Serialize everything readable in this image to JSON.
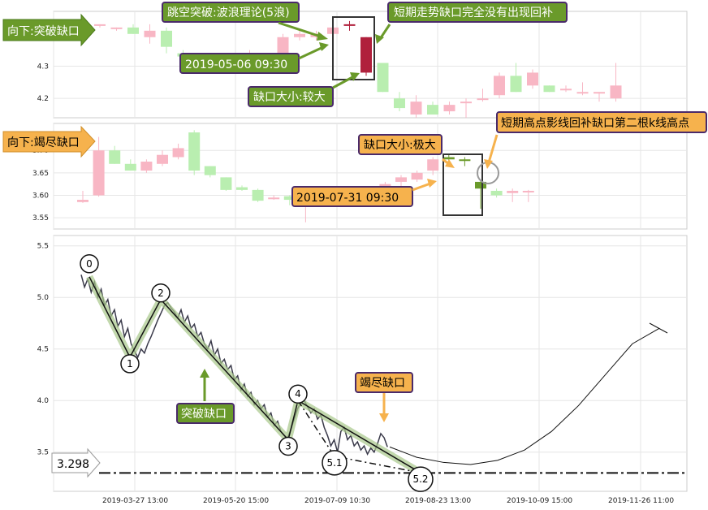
{
  "chart_data": [
    {
      "type": "candlestick",
      "panel": "upper",
      "tag": "向下:突破缺口",
      "ylim": [
        4.14,
        4.47
      ],
      "yticks": [
        "4.3",
        "4.2"
      ],
      "annotations": {
        "wave_breakout": "跳空突破:波浪理论(5浪)",
        "gap_unfilled": "短期走势缺口完全没有出现回补",
        "gap_time": "2019-05-06 09:30",
        "gap_size": "缺口大小:较大"
      },
      "candles": [
        {
          "o": 4.43,
          "h": 4.43,
          "l": 4.42,
          "c": 4.43
        },
        {
          "o": 4.42,
          "h": 4.42,
          "l": 4.41,
          "c": 4.42
        },
        {
          "o": 4.42,
          "h": 4.43,
          "l": 4.4,
          "c": 4.4
        },
        {
          "o": 4.39,
          "h": 4.43,
          "l": 4.37,
          "c": 4.41
        },
        {
          "o": 4.41,
          "h": 4.42,
          "l": 4.34,
          "c": 4.36
        },
        {
          "o": 4.34,
          "h": 4.35,
          "l": 4.32,
          "c": 4.33
        },
        {
          "o": 4.3,
          "h": 4.31,
          "l": 4.29,
          "c": 4.3
        },
        {
          "o": 4.3,
          "h": 4.31,
          "l": 4.29,
          "c": 4.3
        },
        {
          "o": 4.32,
          "h": 4.33,
          "l": 4.31,
          "c": 4.32
        },
        {
          "o": 4.33,
          "h": 4.35,
          "l": 4.32,
          "c": 4.33
        },
        {
          "o": 4.33,
          "h": 4.34,
          "l": 4.32,
          "c": 4.34
        },
        {
          "o": 4.33,
          "h": 4.4,
          "l": 4.32,
          "c": 4.39
        },
        {
          "o": 4.39,
          "h": 4.41,
          "l": 4.38,
          "c": 4.4
        },
        {
          "o": 4.39,
          "h": 4.41,
          "l": 4.38,
          "c": 4.4
        },
        {
          "o": 4.4,
          "h": 4.43,
          "l": 4.39,
          "c": 4.42
        },
        {
          "o": 4.43,
          "h": 4.44,
          "l": 4.41,
          "c": 4.43
        },
        {
          "o": 4.39,
          "h": 4.39,
          "l": 4.27,
          "c": 4.28
        },
        {
          "o": 4.31,
          "h": 4.31,
          "l": 4.22,
          "c": 4.22
        },
        {
          "o": 4.2,
          "h": 4.22,
          "l": 4.16,
          "c": 4.17
        },
        {
          "o": 4.15,
          "h": 4.21,
          "l": 4.14,
          "c": 4.19
        },
        {
          "o": 4.18,
          "h": 4.19,
          "l": 4.15,
          "c": 4.15
        },
        {
          "o": 4.16,
          "h": 4.19,
          "l": 4.15,
          "c": 4.18
        },
        {
          "o": 4.19,
          "h": 4.2,
          "l": 4.14,
          "c": 4.19
        },
        {
          "o": 4.2,
          "h": 4.23,
          "l": 4.19,
          "c": 4.2
        },
        {
          "o": 4.21,
          "h": 4.28,
          "l": 4.2,
          "c": 4.27
        },
        {
          "o": 4.27,
          "h": 4.31,
          "l": 4.22,
          "c": 4.22
        },
        {
          "o": 4.24,
          "h": 4.29,
          "l": 4.23,
          "c": 4.28
        },
        {
          "o": 4.24,
          "h": 4.24,
          "l": 4.22,
          "c": 4.22
        },
        {
          "o": 4.23,
          "h": 4.24,
          "l": 4.22,
          "c": 4.23
        },
        {
          "o": 4.22,
          "h": 4.25,
          "l": 4.21,
          "c": 4.22
        },
        {
          "o": 4.22,
          "h": 4.22,
          "l": 4.19,
          "c": 4.22
        },
        {
          "o": 4.2,
          "h": 4.31,
          "l": 4.19,
          "c": 4.24
        }
      ]
    },
    {
      "type": "candlestick",
      "panel": "middle",
      "tag": "向下:竭尽缺口",
      "ylim": [
        3.525,
        3.76
      ],
      "yticks": [
        "3.70",
        "3.65",
        "3.60",
        "3.55"
      ],
      "annotations": {
        "gap_size": "缺口大小:极大",
        "gap_time": "2019-07-31 09:30",
        "shadow_fill": "短期高点影线回补缺口第二根k线高点"
      },
      "candles": [
        {
          "o": 3.59,
          "h": 3.61,
          "l": 3.583,
          "c": 3.585
        },
        {
          "o": 3.6,
          "h": 3.73,
          "l": 3.597,
          "c": 3.7
        },
        {
          "o": 3.7,
          "h": 3.71,
          "l": 3.67,
          "c": 3.67
        },
        {
          "o": 3.67,
          "h": 3.68,
          "l": 3.655,
          "c": 3.655
        },
        {
          "o": 3.655,
          "h": 3.68,
          "l": 3.65,
          "c": 3.675
        },
        {
          "o": 3.67,
          "h": 3.7,
          "l": 3.665,
          "c": 3.69
        },
        {
          "o": 3.685,
          "h": 3.715,
          "l": 3.68,
          "c": 3.705
        },
        {
          "o": 3.74,
          "h": 3.745,
          "l": 3.645,
          "c": 3.655
        },
        {
          "o": 3.665,
          "h": 3.665,
          "l": 3.64,
          "c": 3.645
        },
        {
          "o": 3.64,
          "h": 3.64,
          "l": 3.61,
          "c": 3.612
        },
        {
          "o": 3.618,
          "h": 3.622,
          "l": 3.61,
          "c": 3.612
        },
        {
          "o": 3.612,
          "h": 3.615,
          "l": 3.585,
          "c": 3.588
        },
        {
          "o": 3.595,
          "h": 3.6,
          "l": 3.59,
          "c": 3.595
        },
        {
          "o": 3.598,
          "h": 3.6,
          "l": 3.578,
          "c": 3.59
        },
        {
          "o": 3.585,
          "h": 3.612,
          "l": 3.54,
          "c": 3.605
        },
        {
          "o": 3.6,
          "h": 3.61,
          "l": 3.59,
          "c": 3.603
        },
        {
          "o": 3.605,
          "h": 3.615,
          "l": 3.6,
          "c": 3.61
        },
        {
          "o": 3.605,
          "h": 3.62,
          "l": 3.59,
          "c": 3.612
        },
        {
          "o": 3.608,
          "h": 3.615,
          "l": 3.6,
          "c": 3.61
        },
        {
          "o": 3.615,
          "h": 3.63,
          "l": 3.605,
          "c": 3.625
        },
        {
          "o": 3.63,
          "h": 3.645,
          "l": 3.62,
          "c": 3.64
        },
        {
          "o": 3.635,
          "h": 3.655,
          "l": 3.63,
          "c": 3.65
        },
        {
          "o": 3.655,
          "h": 3.685,
          "l": 3.645,
          "c": 3.68
        },
        {
          "o": 3.68,
          "h": 3.69,
          "l": 3.67,
          "c": 3.685
        },
        {
          "o": 3.68,
          "h": 3.685,
          "l": 3.665,
          "c": 3.68
        },
        {
          "o": 3.63,
          "h": 3.632,
          "l": 3.57,
          "c": 3.615
        },
        {
          "o": 3.61,
          "h": 3.615,
          "l": 3.595,
          "c": 3.6
        },
        {
          "o": 3.61,
          "h": 3.615,
          "l": 3.585,
          "c": 3.605
        },
        {
          "o": 3.61,
          "h": 3.612,
          "l": 3.585,
          "c": 3.608
        }
      ],
      "candle_colors": [
        "pink",
        "pink",
        "green",
        "green",
        "pink",
        "pink",
        "pink",
        "green",
        "green",
        "green",
        "green",
        "green",
        "pink",
        "green",
        "pink",
        "pink",
        "pink",
        "pink",
        "pink",
        "pink",
        "pink",
        "pink",
        "pink",
        "olive",
        "olive",
        "olive",
        "green",
        "pink",
        "pink"
      ]
    },
    {
      "type": "line",
      "panel": "lower",
      "ylim": [
        3.12,
        5.6
      ],
      "yticks": [
        "5.5",
        "5.0",
        "4.5",
        "4.0",
        "3.5"
      ],
      "xticks": [
        "2019-03-27 13:00",
        "2019-05-20 15:00",
        "2019-07-09 10:30",
        "2019-08-23 13:00",
        "2019-10-09 15:00",
        "2019-11-26 11:00"
      ],
      "support_level": 3.298,
      "support_label": "3.298",
      "wave_points": [
        {
          "label": "0",
          "y": 5.2
        },
        {
          "label": "1",
          "y": 4.42
        },
        {
          "label": "2",
          "y": 4.98
        },
        {
          "label": "3",
          "y": 3.62
        },
        {
          "label": "4",
          "y": 4.0
        },
        {
          "label": "5.1",
          "y": 3.46
        },
        {
          "label": "5.2",
          "y": 3.3
        }
      ],
      "price": [
        [
          0,
          5.22
        ],
        [
          2,
          5.1
        ],
        [
          4,
          5.18
        ],
        [
          6,
          5.05
        ],
        [
          8,
          5.15
        ],
        [
          10,
          5.0
        ],
        [
          12,
          5.08
        ],
        [
          14,
          4.92
        ],
        [
          16,
          4.98
        ],
        [
          18,
          4.82
        ],
        [
          20,
          4.88
        ],
        [
          22,
          4.72
        ],
        [
          24,
          4.78
        ],
        [
          26,
          4.62
        ],
        [
          28,
          4.7
        ],
        [
          30,
          4.55
        ],
        [
          32,
          4.48
        ],
        [
          34,
          4.42
        ],
        [
          36,
          4.5
        ],
        [
          38,
          4.46
        ],
        [
          40,
          4.55
        ],
        [
          42,
          4.62
        ],
        [
          44,
          4.7
        ],
        [
          46,
          4.78
        ],
        [
          48,
          4.85
        ],
        [
          50,
          4.92
        ],
        [
          52,
          4.95
        ],
        [
          54,
          4.9
        ],
        [
          56,
          4.86
        ],
        [
          58,
          4.8
        ],
        [
          60,
          4.88
        ],
        [
          62,
          4.76
        ],
        [
          64,
          4.82
        ],
        [
          66,
          4.7
        ],
        [
          68,
          4.74
        ],
        [
          70,
          4.62
        ],
        [
          72,
          4.66
        ],
        [
          74,
          4.55
        ],
        [
          76,
          4.5
        ],
        [
          78,
          4.58
        ],
        [
          80,
          4.44
        ],
        [
          82,
          4.5
        ],
        [
          84,
          4.36
        ],
        [
          86,
          4.4
        ],
        [
          88,
          4.3
        ],
        [
          90,
          4.34
        ],
        [
          92,
          4.2
        ],
        [
          94,
          4.24
        ],
        [
          96,
          4.1
        ],
        [
          98,
          4.16
        ],
        [
          100,
          4.04
        ],
        [
          102,
          4.08
        ],
        [
          104,
          3.96
        ],
        [
          106,
          4.0
        ],
        [
          108,
          3.92
        ],
        [
          110,
          3.96
        ],
        [
          112,
          3.84
        ],
        [
          114,
          3.88
        ],
        [
          116,
          3.76
        ],
        [
          118,
          3.8
        ],
        [
          120,
          3.7
        ],
        [
          122,
          3.66
        ],
        [
          124,
          3.64
        ],
        [
          126,
          3.72
        ],
        [
          128,
          3.82
        ],
        [
          130,
          3.92
        ],
        [
          132,
          3.98
        ],
        [
          134,
          4.0
        ],
        [
          136,
          3.94
        ],
        [
          138,
          3.88
        ],
        [
          140,
          3.92
        ],
        [
          142,
          3.82
        ],
        [
          144,
          3.86
        ],
        [
          146,
          3.74
        ],
        [
          148,
          3.66
        ],
        [
          150,
          3.56
        ],
        [
          152,
          3.62
        ],
        [
          154,
          3.5
        ],
        [
          156,
          3.7
        ],
        [
          158,
          3.74
        ],
        [
          160,
          3.62
        ],
        [
          162,
          3.66
        ],
        [
          164,
          3.56
        ],
        [
          166,
          3.6
        ],
        [
          168,
          3.52
        ],
        [
          170,
          3.56
        ],
        [
          172,
          3.48
        ],
        [
          174,
          3.54
        ],
        [
          176,
          3.5
        ],
        [
          178,
          3.58
        ],
        [
          180,
          3.68
        ],
        [
          182,
          3.64
        ],
        [
          184,
          3.55
        ]
      ],
      "forecast": [
        3.55,
        3.45,
        3.4,
        3.38,
        3.42,
        3.52,
        3.7,
        3.95,
        4.25,
        4.55,
        4.7
      ],
      "annotations": {
        "breakout": "突破缺口",
        "exhaustion": "竭尽缺口"
      }
    }
  ]
}
